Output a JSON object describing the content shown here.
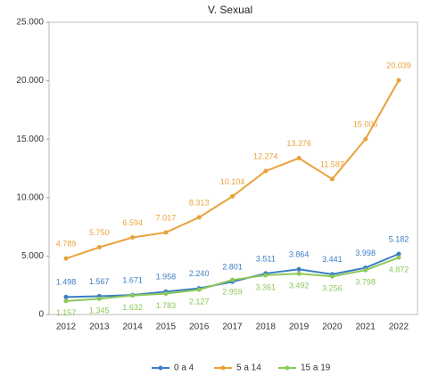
{
  "chart_data": {
    "type": "line",
    "title": "V. Sexual",
    "categories": [
      "2012",
      "2013",
      "2014",
      "2015",
      "2016",
      "2017",
      "2018",
      "2019",
      "2020",
      "2021",
      "2022"
    ],
    "series": [
      {
        "name": "0 a 4",
        "color": "#3b7ec4",
        "values": [
          1498,
          1567,
          1671,
          1958,
          2240,
          2801,
          3511,
          3864,
          3441,
          3998,
          5182
        ],
        "value_labels": [
          "1.498",
          "1.567",
          "1.671",
          "1.958",
          "2.240",
          "2.801",
          "3.511",
          "3.864",
          "3.441",
          "3.998",
          "5.182"
        ]
      },
      {
        "name": "5 a 14",
        "color": "#e9a23b",
        "values": [
          4789,
          5750,
          6594,
          7017,
          8313,
          10104,
          12274,
          13376,
          11587,
          15006,
          20039
        ],
        "value_labels": [
          "4.789",
          "5.750",
          "6.594",
          "7.017",
          "8.313",
          "10.104",
          "12.274",
          "13.376",
          "11.587",
          "15.006",
          "20.039"
        ]
      },
      {
        "name": "15 a 19",
        "color": "#8cc859",
        "values": [
          1157,
          1345,
          1632,
          1783,
          2127,
          2959,
          3361,
          3492,
          3256,
          3798,
          4872
        ],
        "value_labels": [
          "1.157",
          "1.345",
          "1.632",
          "1.783",
          "2.127",
          "2.959",
          "3.361",
          "3.492",
          "3.256",
          "3.798",
          "4.872"
        ]
      }
    ],
    "ylim": [
      0,
      25000
    ],
    "yticks": [
      {
        "value": 0,
        "label": "0"
      },
      {
        "value": 5000,
        "label": "5.000"
      },
      {
        "value": 10000,
        "label": "10.000"
      },
      {
        "value": 15000,
        "label": "15.000"
      },
      {
        "value": 20000,
        "label": "20.000"
      },
      {
        "value": 25000,
        "label": "25.000"
      }
    ],
    "grid": false,
    "legend": "bottom"
  }
}
